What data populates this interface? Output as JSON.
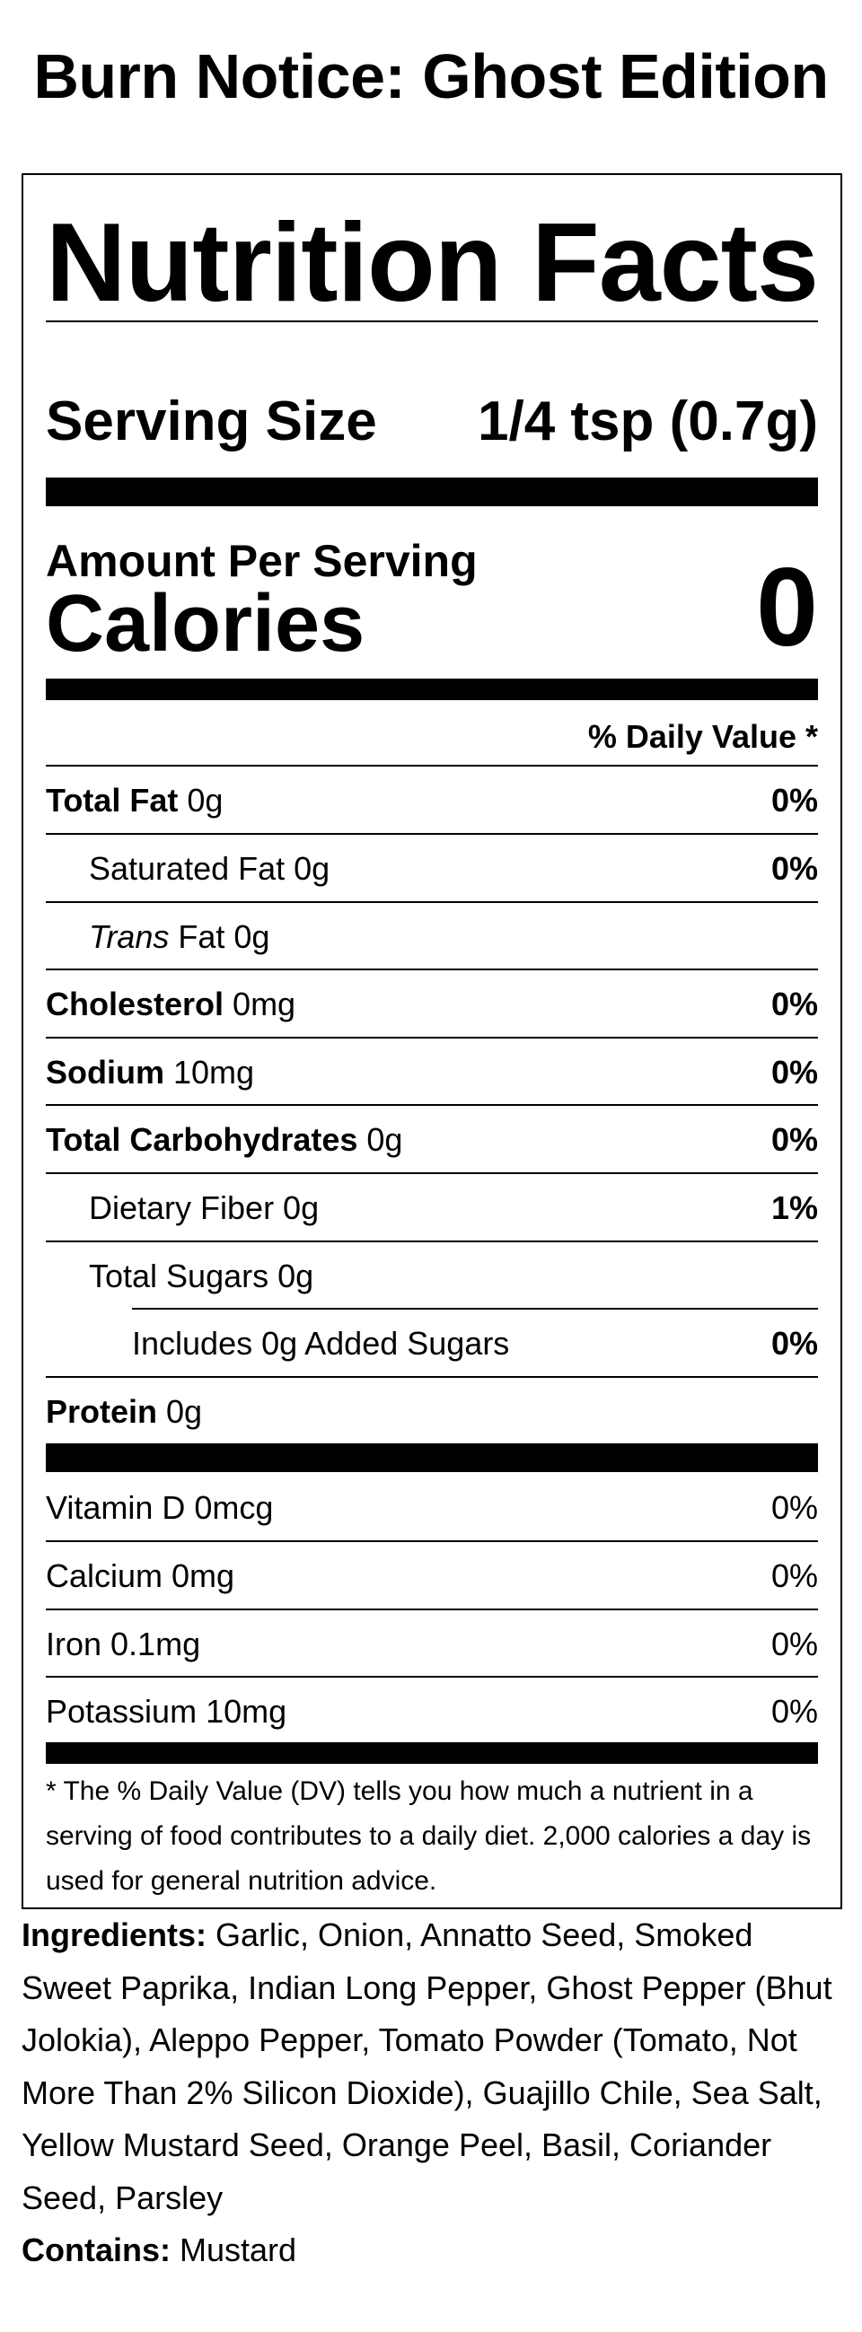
{
  "product": {
    "title": "Burn Notice: Ghost Edition"
  },
  "label": {
    "heading": "Nutrition Facts",
    "serving_size_label": "Serving Size",
    "serving_size_value": "1/4 tsp (0.7g)",
    "amount_per_serving": "Amount Per Serving",
    "calories_label": "Calories",
    "calories_value": "0",
    "daily_value_header": "% Daily Value *",
    "nutrients": [
      {
        "name": "Total Fat",
        "amount": " 0g",
        "dv": "0%"
      },
      {
        "name": "Saturated Fat 0g",
        "dv": "0%"
      },
      {
        "name_italic": "Trans",
        "name_rest": " Fat 0g"
      },
      {
        "name": "Cholesterol",
        "amount": " 0mg",
        "dv": "0%"
      },
      {
        "name": "Sodium",
        "amount": " 10mg",
        "dv": "0%"
      },
      {
        "name": "Total Carbohydrates",
        "amount": " 0g",
        "dv": "0%"
      },
      {
        "name": "Dietary Fiber 0g",
        "dv": "1%"
      },
      {
        "name": "Total Sugars 0g"
      },
      {
        "name": "Includes 0g Added Sugars",
        "dv": "0%"
      },
      {
        "name": "Protein",
        "amount": " 0g"
      }
    ],
    "vitamins": [
      {
        "name": "Vitamin D 0mcg",
        "dv": "0%"
      },
      {
        "name": "Calcium 0mg",
        "dv": "0%"
      },
      {
        "name": "Iron 0.1mg",
        "dv": "0%"
      },
      {
        "name": "Potassium 10mg",
        "dv": "0%"
      }
    ],
    "footnote": "* The % Daily Value (DV) tells you how much a nutrient in a serving of food contributes to a daily diet. 2,000 calories a day is used for general nutrition advice."
  },
  "ingredients": {
    "label": "Ingredients:",
    "text": " Garlic, Onion, Annatto Seed, Smoked Sweet Paprika, Indian Long Pepper, Ghost Pepper (Bhut Jolokia), Aleppo Pepper, Tomato Powder (Tomato, Not More Than 2% Silicon Dioxide), Guajillo Chile, Sea Salt, Yellow Mustard Seed, Orange Peel, Basil, Coriander Seed, Parsley",
    "contains_label": "Contains:",
    "contains_text": " Mustard"
  }
}
